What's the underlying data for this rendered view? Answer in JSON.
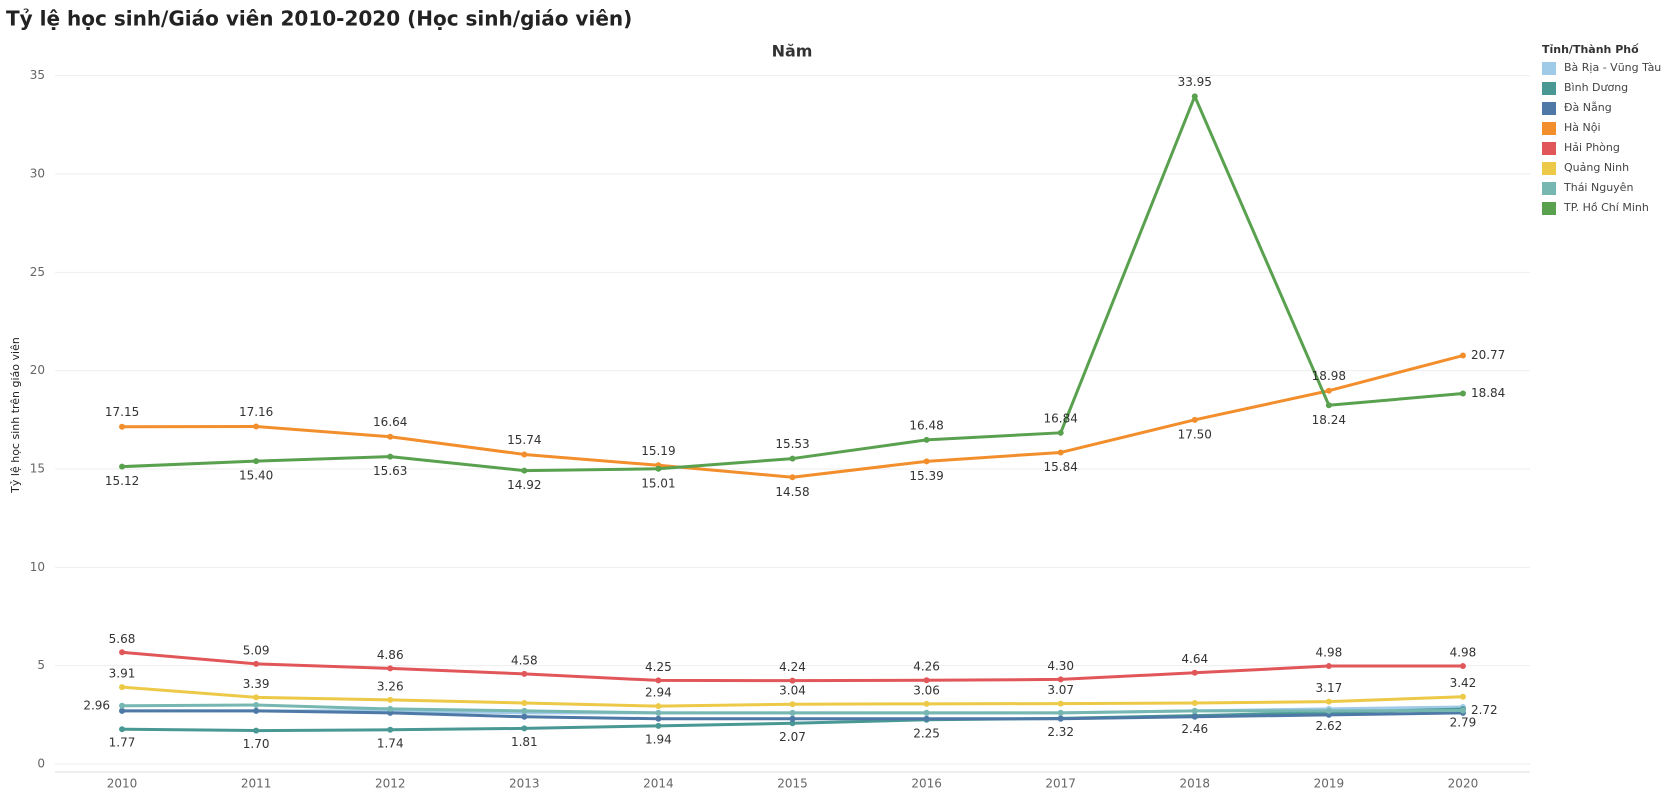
{
  "chart_data": {
    "type": "line",
    "title": "Tỷ lệ học sinh/Giáo viên 2010-2020 (Học sinh/giáo viên)",
    "x_label": "Năm",
    "y_label": "Tỷ lệ học sinh trên giáo viên",
    "legend_title": "Tỉnh/Thành Phố",
    "categories": [
      "2010",
      "2011",
      "2012",
      "2013",
      "2014",
      "2015",
      "2016",
      "2017",
      "2018",
      "2019",
      "2020"
    ],
    "ylim": [
      0,
      36
    ],
    "yticks": [
      0,
      5,
      10,
      15,
      20,
      25,
      30,
      35
    ],
    "grid": true,
    "series": [
      {
        "name": "Bà Rịa - Vũng Tàu",
        "color": "#a0cbe8",
        "values": [
          2.7,
          2.7,
          2.7,
          2.6,
          2.6,
          2.6,
          2.6,
          2.6,
          2.7,
          2.8,
          2.9
        ]
      },
      {
        "name": "Bình Dương",
        "color": "#499894",
        "values": [
          1.77,
          1.7,
          1.74,
          1.81,
          1.94,
          2.07,
          2.25,
          2.32,
          2.46,
          2.62,
          2.79
        ],
        "value_labels": [
          "1.77",
          "1.70",
          "1.74",
          "1.81",
          "1.94",
          "2.07",
          "2.25",
          "2.32",
          "2.46",
          "2.62",
          "2.79"
        ]
      },
      {
        "name": "Đà Nẵng",
        "color": "#4e79a7",
        "values": [
          2.7,
          2.7,
          2.6,
          2.4,
          2.3,
          2.3,
          2.3,
          2.3,
          2.4,
          2.5,
          2.6
        ]
      },
      {
        "name": "Hà Nội",
        "color": "#f28e2b",
        "values": [
          17.15,
          17.16,
          16.64,
          15.74,
          15.19,
          14.58,
          15.39,
          15.84,
          17.5,
          18.98,
          20.77
        ],
        "value_labels": [
          "17.15",
          "17.16",
          "16.64",
          "15.74",
          "15.19",
          "14.58",
          "15.39",
          "15.84",
          "17.50",
          "18.98",
          "20.77"
        ]
      },
      {
        "name": "Hải Phòng",
        "color": "#e15759",
        "values": [
          5.68,
          5.09,
          4.86,
          4.58,
          4.25,
          4.24,
          4.26,
          4.3,
          4.64,
          4.98,
          4.98
        ],
        "value_labels": [
          "5.68",
          "5.09",
          "4.86",
          "4.58",
          "4.25",
          "4.24",
          "4.26",
          "4.30",
          "4.64",
          "4.98",
          "4.98"
        ]
      },
      {
        "name": "Quảng Ninh",
        "color": "#edc948",
        "values": [
          3.91,
          3.39,
          3.26,
          3.1,
          2.94,
          3.04,
          3.06,
          3.07,
          3.1,
          3.17,
          3.42
        ],
        "value_labels": [
          "3.91",
          "3.39",
          "3.26",
          null,
          "2.94",
          "3.04",
          "3.06",
          "3.07",
          null,
          "3.17",
          "3.42"
        ]
      },
      {
        "name": "Thái  Nguyên",
        "color": "#76b7b2",
        "values": [
          2.96,
          3.0,
          2.8,
          2.7,
          2.6,
          2.6,
          2.6,
          2.6,
          2.7,
          2.7,
          2.72
        ],
        "value_labels": [
          "2.96",
          null,
          null,
          null,
          null,
          null,
          null,
          null,
          null,
          null,
          "2.72"
        ]
      },
      {
        "name": "TP. Hồ Chí Minh",
        "color": "#59a14f",
        "values": [
          15.12,
          15.4,
          15.63,
          14.92,
          15.01,
          15.53,
          16.48,
          16.84,
          33.95,
          18.24,
          18.84
        ],
        "value_labels": [
          "15.12",
          "15.40",
          "15.63",
          "14.92",
          "15.01",
          "15.53",
          "16.48",
          "16.84",
          "33.95",
          "18.24",
          "18.84"
        ]
      }
    ]
  }
}
